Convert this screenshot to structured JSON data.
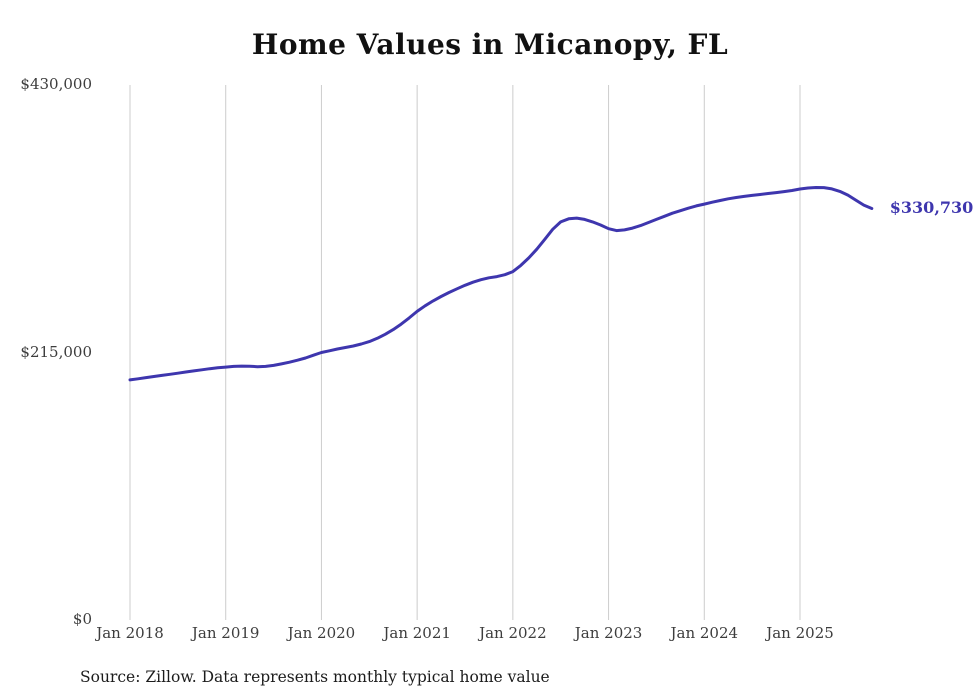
{
  "title": "Home Values in Micanopy, FL",
  "end_label": "$330,730",
  "source": "Source: Zillow. Data represents monthly typical home value",
  "colors": {
    "line": "#3e36ae",
    "end_label": "#3e36ae",
    "grid": "#cccccc",
    "title": "#111111",
    "tick_text": "#3d3d3d"
  },
  "chart_data": {
    "type": "line",
    "title": "Home Values in Micanopy, FL",
    "xlabel": "",
    "ylabel": "",
    "ylim": [
      0,
      430000
    ],
    "grid": "vertical-only",
    "legend": "none",
    "end_label": "$330,730",
    "end_value": 330730,
    "y_ticks": [
      {
        "label": "$430,000",
        "value": 430000
      },
      {
        "label": "$215,000",
        "value": 215000
      },
      {
        "label": "$0",
        "value": 0
      }
    ],
    "x_ticks": [
      {
        "label": "Jan 2018",
        "month_index": 0
      },
      {
        "label": "Jan 2019",
        "month_index": 12
      },
      {
        "label": "Jan 2020",
        "month_index": 24
      },
      {
        "label": "Jan 2021",
        "month_index": 36
      },
      {
        "label": "Jan 2022",
        "month_index": 48
      },
      {
        "label": "Jan 2023",
        "month_index": 60
      },
      {
        "label": "Jan 2024",
        "month_index": 72
      },
      {
        "label": "Jan 2025",
        "month_index": 84
      }
    ],
    "x": [
      "2018-01",
      "2018-02",
      "2018-03",
      "2018-04",
      "2018-05",
      "2018-06",
      "2018-07",
      "2018-08",
      "2018-09",
      "2018-10",
      "2018-11",
      "2018-12",
      "2019-01",
      "2019-02",
      "2019-03",
      "2019-04",
      "2019-05",
      "2019-06",
      "2019-07",
      "2019-08",
      "2019-09",
      "2019-10",
      "2019-11",
      "2019-12",
      "2020-01",
      "2020-02",
      "2020-03",
      "2020-04",
      "2020-05",
      "2020-06",
      "2020-07",
      "2020-08",
      "2020-09",
      "2020-10",
      "2020-11",
      "2020-12",
      "2021-01",
      "2021-02",
      "2021-03",
      "2021-04",
      "2021-05",
      "2021-06",
      "2021-07",
      "2021-08",
      "2021-09",
      "2021-10",
      "2021-11",
      "2021-12",
      "2022-01",
      "2022-02",
      "2022-03",
      "2022-04",
      "2022-05",
      "2022-06",
      "2022-07",
      "2022-08",
      "2022-09",
      "2022-10",
      "2022-11",
      "2022-12",
      "2023-01",
      "2023-02",
      "2023-03",
      "2023-04",
      "2023-05",
      "2023-06",
      "2023-07",
      "2023-08",
      "2023-09",
      "2023-10",
      "2023-11",
      "2023-12",
      "2024-01",
      "2024-02",
      "2024-03",
      "2024-04",
      "2024-05",
      "2024-06",
      "2024-07",
      "2024-08",
      "2024-09",
      "2024-10",
      "2024-11",
      "2024-12",
      "2025-01",
      "2025-02",
      "2025-03",
      "2025-04",
      "2025-05",
      "2025-06",
      "2025-07",
      "2025-08",
      "2025-09",
      "2025-10"
    ],
    "values": [
      193000,
      193900,
      194800,
      195700,
      196600,
      197500,
      198400,
      199300,
      200200,
      201100,
      202000,
      202700,
      203300,
      203800,
      204100,
      204000,
      203600,
      203800,
      204600,
      205800,
      207200,
      208800,
      210600,
      212800,
      215000,
      216400,
      217800,
      219000,
      220200,
      221800,
      223800,
      226400,
      229600,
      233400,
      237800,
      242800,
      248000,
      252500,
      256500,
      260000,
      263200,
      266200,
      269000,
      271500,
      273500,
      275000,
      276000,
      277500,
      280000,
      285000,
      291000,
      298000,
      306000,
      314000,
      320000,
      322500,
      323000,
      322000,
      320000,
      317500,
      314500,
      313000,
      313500,
      315000,
      317000,
      319500,
      322000,
      324500,
      327000,
      329000,
      331000,
      332800,
      334300,
      335800,
      337200,
      338500,
      339600,
      340500,
      341300,
      342000,
      342800,
      343500,
      344300,
      345200,
      346400,
      347200,
      347600,
      347500,
      346500,
      344500,
      341500,
      337500,
      333500,
      330730
    ]
  }
}
